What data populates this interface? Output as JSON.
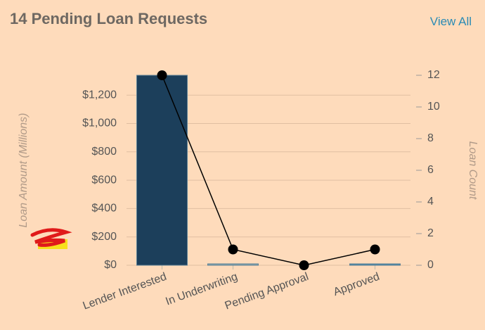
{
  "header": {
    "title": "14 Pending Loan Requests",
    "link": "View All"
  },
  "chart_data": {
    "type": "bar-line",
    "y_label": "Loan Amount (Millions)",
    "y2_label": "Loan Count",
    "categories": [
      "Lender Interested",
      "In Underwriting",
      "Pending Approval",
      "Approved"
    ],
    "series": [
      {
        "type": "bar",
        "colors": [
          "#1c3f5b",
          "#8aa8ad",
          "#8aa8ad",
          "#4b8aa6"
        ],
        "values": [
          1340,
          10,
          0,
          10
        ]
      },
      {
        "type": "line",
        "axis": "y2",
        "color": "#000000",
        "values": [
          12,
          1,
          0,
          1
        ]
      }
    ],
    "ylim": [
      0,
      1340
    ],
    "yticks": [
      {
        "value": 0,
        "label": "$0"
      },
      {
        "value": 200,
        "label": "$200"
      },
      {
        "value": 400,
        "label": "$400"
      },
      {
        "value": 600,
        "label": "$600"
      },
      {
        "value": 800,
        "label": "$800"
      },
      {
        "value": 1000,
        "label": "$1,000"
      },
      {
        "value": 1200,
        "label": "$1,200"
      }
    ],
    "y2lim": [
      0,
      12
    ],
    "y2ticks": [
      0,
      2,
      4,
      6,
      8,
      10,
      12
    ],
    "grid": true
  }
}
